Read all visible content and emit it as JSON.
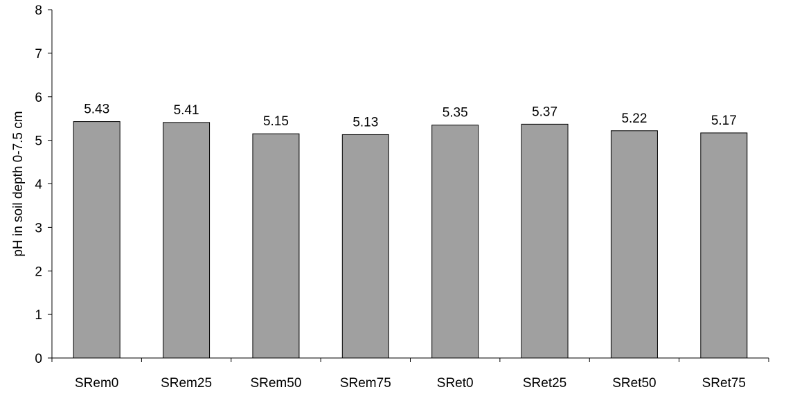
{
  "chart_data": {
    "type": "bar",
    "ylabel": "pH in soil depth 0-7.5 cm",
    "xlabel": "",
    "categories": [
      "SRem0",
      "SRem25",
      "SRem50",
      "SRem75",
      "SRet0",
      "SRet25",
      "SRet50",
      "SRet75"
    ],
    "values": [
      5.43,
      5.41,
      5.15,
      5.13,
      5.35,
      5.37,
      5.22,
      5.17
    ],
    "value_labels": [
      "5.43",
      "5.41",
      "5.15",
      "5.13",
      "5.35",
      "5.37",
      "5.22",
      "5.17"
    ],
    "ylim": [
      0,
      8
    ],
    "yticks": [
      "0",
      "1",
      "2",
      "3",
      "4",
      "5",
      "6",
      "7",
      "8"
    ],
    "grid": false,
    "legend": "none",
    "bar_color": "#a0a0a0"
  }
}
